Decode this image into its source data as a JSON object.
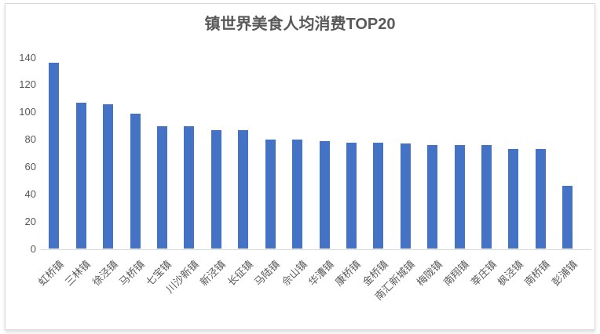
{
  "chart": {
    "title": "镇世界美食人均消费TOP20"
  },
  "chart_data": {
    "type": "bar",
    "title": "镇世界美食人均消费TOP20",
    "categories": [
      "虹桥镇",
      "三林镇",
      "徐泾镇",
      "马桥镇",
      "七宝镇",
      "川沙新镇",
      "新泾镇",
      "长征镇",
      "马陆镇",
      "佘山镇",
      "华漕镇",
      "康桥镇",
      "金桥镇",
      "南汇新城镇",
      "梅陇镇",
      "南翔镇",
      "莘庄镇",
      "枫泾镇",
      "南桥镇",
      "彭浦镇"
    ],
    "values": [
      136,
      107,
      106,
      99,
      90,
      90,
      87,
      87,
      80,
      80,
      79,
      78,
      78,
      77,
      76,
      76,
      76,
      73,
      73,
      46
    ],
    "xlabel": "",
    "ylabel": "",
    "ylim": [
      0,
      140
    ],
    "y_ticks": [
      0,
      20,
      40,
      60,
      80,
      100,
      120,
      140
    ],
    "grid": false,
    "legend": "none",
    "bar_color": "#4472C4",
    "axis_label_color": "#595959",
    "title_color": "#595959",
    "axis_line_color": "#d9d9d9"
  }
}
